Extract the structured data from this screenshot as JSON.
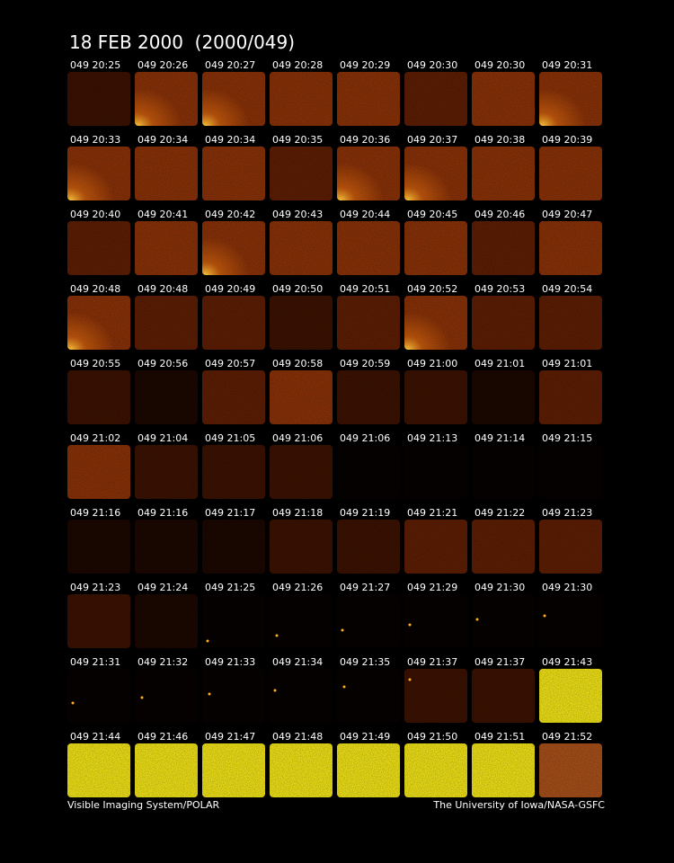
{
  "header": {
    "title": "18 FEB 2000  (2000/049)"
  },
  "frames": [
    "049 20:25",
    "049 20:26",
    "049 20:27",
    "049 20:28",
    "049 20:29",
    "049 20:30",
    "049 20:30",
    "049 20:31",
    "049 20:33",
    "049 20:34",
    "049 20:34",
    "049 20:35",
    "049 20:36",
    "049 20:37",
    "049 20:38",
    "049 20:39",
    "049 20:40",
    "049 20:41",
    "049 20:42",
    "049 20:43",
    "049 20:44",
    "049 20:45",
    "049 20:46",
    "049 20:47",
    "049 20:48",
    "049 20:48",
    "049 20:49",
    "049 20:50",
    "049 20:51",
    "049 20:52",
    "049 20:53",
    "049 20:54",
    "049 20:55",
    "049 20:56",
    "049 20:57",
    "049 20:58",
    "049 20:59",
    "049 21:00",
    "049 21:01",
    "049 21:01",
    "049 21:02",
    "049 21:04",
    "049 21:05",
    "049 21:06",
    "049 21:06",
    "049 21:13",
    "049 21:14",
    "049 21:15",
    "049 21:16",
    "049 21:16",
    "049 21:17",
    "049 21:18",
    "049 21:19",
    "049 21:21",
    "049 21:22",
    "049 21:23",
    "049 21:23",
    "049 21:24",
    "049 21:25",
    "049 21:26",
    "049 21:27",
    "049 21:29",
    "049 21:30",
    "049 21:30",
    "049 21:31",
    "049 21:32",
    "049 21:33",
    "049 21:34",
    "049 21:35",
    "049 21:37",
    "049 21:37",
    "049 21:43",
    "049 21:44",
    "049 21:46",
    "049 21:47",
    "049 21:48",
    "049 21:49",
    "049 21:50",
    "049 21:51",
    "049 21:52"
  ],
  "footer": {
    "left": "Visible Imaging System/POLAR",
    "right": "The University of Iowa/NASA-GSFC"
  }
}
